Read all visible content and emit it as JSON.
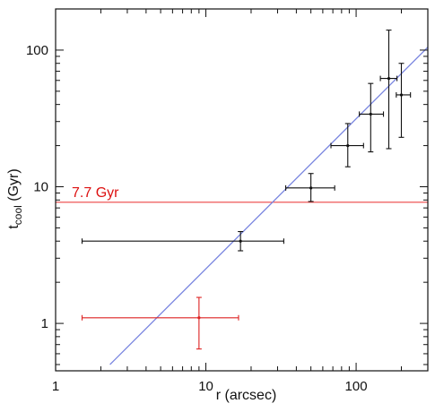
{
  "chart_data": {
    "type": "scatter",
    "xscale": "log",
    "yscale": "log",
    "xlim": [
      1,
      300
    ],
    "ylim": [
      0.45,
      200
    ],
    "xlabel": "r (arcsec)",
    "ylabel_main": "t",
    "ylabel_sub": "cool",
    "ylabel_rest": " (Gyr)",
    "x_ticks": [
      {
        "value": 1,
        "label": "1"
      },
      {
        "value": 10,
        "label": "10"
      },
      {
        "value": 100,
        "label": "100"
      }
    ],
    "y_ticks": [
      {
        "value": 1,
        "label": "1"
      },
      {
        "value": 10,
        "label": "10"
      },
      {
        "value": 100,
        "label": "100"
      }
    ],
    "grid": false,
    "series": [
      {
        "color": "#111111",
        "points": [
          {
            "x": 17,
            "y": 4.0,
            "xerr": [
              1.5,
              33
            ],
            "yerr": [
              3.4,
              4.7
            ]
          },
          {
            "x": 50,
            "y": 9.8,
            "xerr": [
              34,
              72
            ],
            "yerr": [
              7.8,
              12.5
            ]
          },
          {
            "x": 88,
            "y": 20,
            "xerr": [
              68,
              112
            ],
            "yerr": [
              14,
              29
            ]
          },
          {
            "x": 125,
            "y": 34,
            "xerr": [
              105,
              152
            ],
            "yerr": [
              18,
              57
            ]
          },
          {
            "x": 165,
            "y": 62,
            "xerr": [
              145,
              187
            ],
            "yerr": [
              19,
              140
            ]
          },
          {
            "x": 200,
            "y": 47,
            "xerr": [
              185,
              230
            ],
            "yerr": [
              23,
              80
            ]
          }
        ]
      },
      {
        "color": "#dd2222",
        "points": [
          {
            "x": 9,
            "y": 1.1,
            "xerr": [
              1.5,
              16.5
            ],
            "yerr": [
              0.65,
              1.55
            ]
          }
        ]
      }
    ],
    "hline": {
      "y": 7.7,
      "label": "7.7 Gyr",
      "color": "#ee4444"
    },
    "fit_line": {
      "color": "#7a86e0",
      "x": [
        2.3,
        300
      ],
      "y": [
        0.5,
        105
      ]
    }
  }
}
